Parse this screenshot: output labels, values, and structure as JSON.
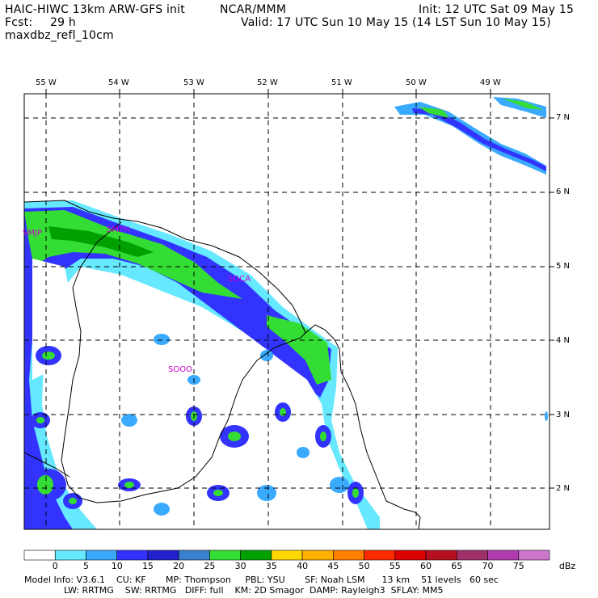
{
  "header": {
    "model": "HAIC-HIWC 13km ARW-GFS init",
    "org": "NCAR/MMM",
    "init": "Init: 12 UTC Sat 09 May 15",
    "fcst_label": "Fcst:",
    "fcst_value": "29 h",
    "valid": "Valid: 17 UTC Sun 10 May 15 (14 LST Sun 10 May 15)",
    "field": "maxdbz_refl_10cm"
  },
  "map": {
    "lon_ticks": [
      "55 W",
      "54 W",
      "53 W",
      "52 W",
      "51 W",
      "50 W",
      "49 W"
    ],
    "lat_ticks": [
      "7 N",
      "6 N",
      "5 N",
      "4 N",
      "3 N",
      "2 N"
    ],
    "stations": [
      "SMJP",
      "SOCA",
      "SOOO",
      "SMFH"
    ],
    "stations_note": "station labels read from image"
  },
  "colorbar": {
    "unit": "dBz",
    "levels": [
      "0",
      "5",
      "10",
      "15",
      "20",
      "25",
      "30",
      "35",
      "40",
      "45",
      "50",
      "55",
      "60",
      "65",
      "70",
      "75"
    ],
    "colors": [
      "#ffffff",
      "#66e8ff",
      "#3aaaff",
      "#3333ff",
      "#2222cc",
      "#3a7fd0",
      "#33dd33",
      "#00a000",
      "#ffd700",
      "#ffb000",
      "#ff8000",
      "#ff2a00",
      "#dd0000",
      "#b51020",
      "#a0306a",
      "#b03cb0",
      "#cc77cc"
    ]
  },
  "footer": {
    "line1": "Model Info: V3.6.1    CU: KF       MP: Thompson     PBL: YSU       SF: Noah LSM      13 km    51 levels   60 sec",
    "line2": "              LW: RRTMG    SW: RRTMG   DIFF: full    KM: 2D Smagor  DAMP: Rayleigh3  SFLAY: MM5"
  }
}
